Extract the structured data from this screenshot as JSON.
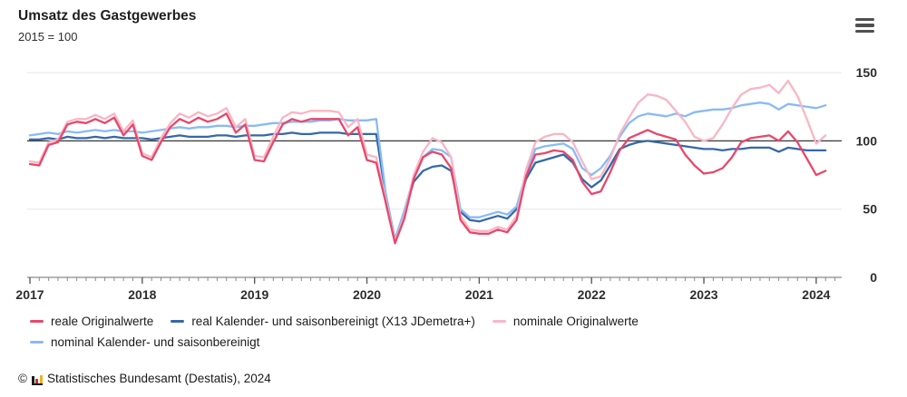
{
  "header": {
    "title": "Umsatz des Gastgewerbes",
    "subtitle": "2015 = 100",
    "menu_icon": "hamburger-menu"
  },
  "chart_data": {
    "type": "line",
    "title": "Umsatz des Gastgewerbes",
    "subtitle": "2015 = 100",
    "x_unit": "month",
    "x_range": [
      "2017-01",
      "2024-02"
    ],
    "x_tick_labels": [
      "2017",
      "2018",
      "2019",
      "2020",
      "2021",
      "2022",
      "2023",
      "2024"
    ],
    "y_ticks": [
      0,
      50,
      100,
      150
    ],
    "ylim": [
      0,
      155
    ],
    "reference_line": 100,
    "grid": "horizontal",
    "legend_position": "bottom",
    "colors": {
      "reference_line": "#404040",
      "gridline": "#e7e7e7",
      "axis": "#8a8a8a",
      "tick_label": "#2d2d2d"
    },
    "series": [
      {
        "name": "reale Originalwerte",
        "color": "#e8476b",
        "values": [
          83,
          82,
          97,
          99,
          112,
          114,
          113,
          116,
          113,
          117,
          104,
          112,
          89,
          86,
          99,
          110,
          116,
          113,
          117,
          114,
          116,
          120,
          106,
          112,
          86,
          85,
          99,
          112,
          116,
          114,
          116,
          116,
          116,
          116,
          104,
          110,
          86,
          84,
          55,
          25,
          43,
          72,
          88,
          92,
          90,
          80,
          42,
          33,
          32,
          32,
          35,
          33,
          42,
          74,
          90,
          91,
          93,
          92,
          86,
          70,
          61,
          63,
          77,
          93,
          102,
          105,
          108,
          105,
          103,
          101,
          90,
          82,
          76,
          77,
          80,
          88,
          99,
          102,
          103,
          104,
          100,
          107,
          99,
          87,
          75,
          78
        ]
      },
      {
        "name": "real Kalender- und saisonbereinigt (X13 JDemetra+)",
        "color": "#3568a9",
        "values": [
          101,
          101,
          102,
          101,
          103,
          102,
          102,
          103,
          102,
          103,
          102,
          102,
          102,
          101,
          102,
          103,
          104,
          103,
          103,
          103,
          104,
          104,
          103,
          104,
          104,
          104,
          105,
          105,
          106,
          105,
          105,
          106,
          106,
          106,
          105,
          105,
          105,
          105,
          60,
          27,
          47,
          70,
          78,
          81,
          82,
          78,
          48,
          42,
          41,
          43,
          45,
          43,
          50,
          72,
          84,
          86,
          88,
          90,
          84,
          72,
          66,
          71,
          82,
          94,
          97,
          99,
          100,
          99,
          98,
          97,
          96,
          95,
          94,
          94,
          93,
          94,
          94,
          95,
          95,
          95,
          92,
          95,
          94,
          93,
          93,
          93
        ]
      },
      {
        "name": "nominale Originalwerte",
        "color": "#f9b6c4",
        "values": [
          85,
          84,
          99,
          101,
          114,
          116,
          116,
          119,
          116,
          120,
          107,
          115,
          91,
          88,
          102,
          113,
          120,
          117,
          121,
          118,
          120,
          124,
          110,
          116,
          89,
          88,
          103,
          117,
          121,
          120,
          122,
          122,
          122,
          121,
          110,
          116,
          90,
          88,
          57,
          26,
          45,
          75,
          92,
          102,
          99,
          88,
          45,
          35,
          34,
          34,
          37,
          35,
          45,
          79,
          99,
          103,
          105,
          105,
          99,
          85,
          72,
          74,
          87,
          105,
          117,
          128,
          134,
          133,
          130,
          122,
          114,
          103,
          100,
          102,
          112,
          124,
          134,
          138,
          139,
          141,
          135,
          144,
          133,
          116,
          98,
          104
        ]
      },
      {
        "name": "nominal Kalender- und saisonbereinigt",
        "color": "#89baf5",
        "values": [
          104,
          105,
          106,
          105,
          107,
          106,
          107,
          108,
          107,
          108,
          107,
          107,
          106,
          107,
          108,
          109,
          110,
          109,
          110,
          110,
          111,
          111,
          110,
          111,
          111,
          112,
          113,
          113,
          114,
          114,
          114,
          115,
          115,
          116,
          115,
          115,
          115,
          116,
          62,
          28,
          49,
          73,
          88,
          94,
          93,
          88,
          50,
          44,
          44,
          46,
          48,
          46,
          52,
          76,
          94,
          96,
          97,
          98,
          94,
          80,
          75,
          80,
          89,
          103,
          113,
          118,
          120,
          119,
          118,
          120,
          118,
          121,
          122,
          123,
          123,
          124,
          126,
          127,
          128,
          127,
          123,
          127,
          126,
          125,
          124,
          126
        ]
      }
    ]
  },
  "footer": {
    "copyright": "©",
    "logo": "destatis-bar-chart-logo",
    "attribution": "Statistisches Bundesamt (Destatis), 2024"
  }
}
